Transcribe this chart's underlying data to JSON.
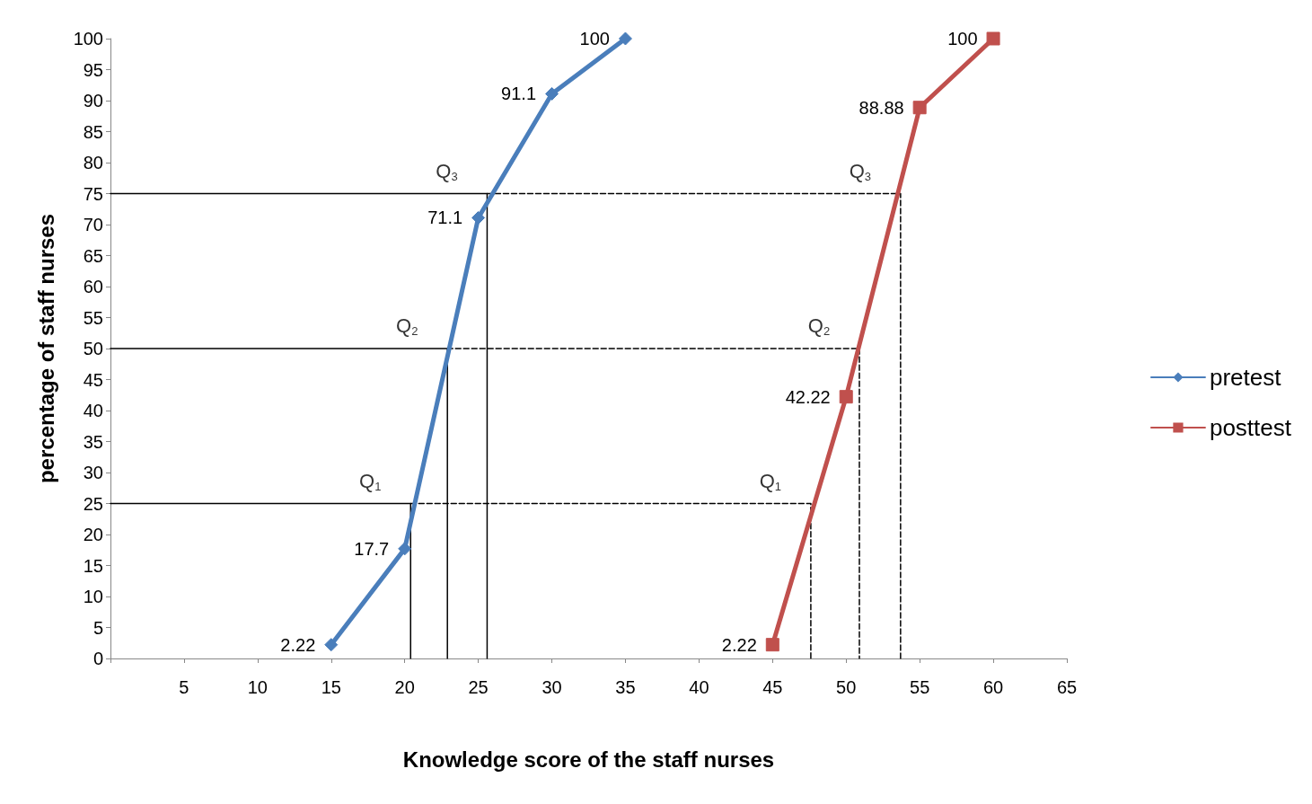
{
  "chart_data": {
    "type": "line",
    "xlabel": "Knowledge score of the staff nurses",
    "ylabel": "percentage of staff nurses",
    "xlim": [
      0,
      65
    ],
    "xticks": [
      {
        "value": 0,
        "label": null
      },
      5,
      10,
      15,
      20,
      25,
      30,
      35,
      40,
      45,
      50,
      55,
      60,
      65
    ],
    "ylim": [
      0,
      100
    ],
    "yticks": [
      0,
      5,
      10,
      15,
      20,
      25,
      30,
      35,
      40,
      45,
      50,
      55,
      60,
      65,
      70,
      75,
      80,
      85,
      90,
      95,
      100
    ],
    "grid": false,
    "legend": "right",
    "series": [
      {
        "name": "pretest",
        "color": "#4a7ebb",
        "marker": "diamond",
        "line_style": "solid",
        "x": [
          15,
          20,
          25,
          30,
          35
        ],
        "values": [
          2.22,
          17.7,
          71.1,
          91.1,
          100
        ],
        "value_labels": [
          "2.22",
          "17.7",
          "71.1",
          "91.1",
          "100"
        ]
      },
      {
        "name": "posttest",
        "color": "#c0504d",
        "marker": "square",
        "line_style": "solid",
        "x": [
          45,
          50,
          55,
          60
        ],
        "values": [
          2.22,
          42.22,
          88.88,
          100
        ],
        "value_labels": [
          "2.22",
          "42.22",
          "88.88",
          "100"
        ]
      },
      {
        "color": "#000000",
        "marker": "none",
        "line_style": "solid",
        "x": [
          0,
          20.4,
          20.4
        ],
        "values": [
          25,
          25,
          0
        ]
      },
      {
        "color": "#000000",
        "marker": "none",
        "line_style": "solid",
        "x": [
          0,
          22.9,
          22.9
        ],
        "values": [
          50,
          50,
          0
        ]
      },
      {
        "color": "#000000",
        "marker": "none",
        "line_style": "solid",
        "x": [
          0,
          25.6,
          25.6
        ],
        "values": [
          75,
          75,
          0
        ]
      },
      {
        "color": "#000000",
        "marker": "none",
        "line_style": "dashed",
        "x": [
          20.4,
          47.6,
          47.6
        ],
        "values": [
          25,
          25,
          0
        ]
      },
      {
        "color": "#000000",
        "marker": "none",
        "line_style": "dashed",
        "x": [
          22.9,
          50.9,
          50.9
        ],
        "values": [
          50,
          50,
          0
        ]
      },
      {
        "color": "#000000",
        "marker": "none",
        "line_style": "dashed",
        "x": [
          25.6,
          53.7,
          53.7
        ],
        "values": [
          75,
          75,
          0
        ]
      }
    ],
    "annotations": [
      {
        "text": "Q$_{1}$",
        "x": 20.4,
        "y": 25
      },
      {
        "text": "Q$_{2}$",
        "x": 22.9,
        "y": 50
      },
      {
        "text": "Q$_{3}$",
        "x": 25.6,
        "y": 75
      },
      {
        "text": "Q$_{1}$",
        "x": 47.6,
        "y": 25
      },
      {
        "text": "Q$_{2}$",
        "x": 50.9,
        "y": 50
      },
      {
        "text": "Q$_{3}$",
        "x": 53.7,
        "y": 75
      }
    ]
  }
}
